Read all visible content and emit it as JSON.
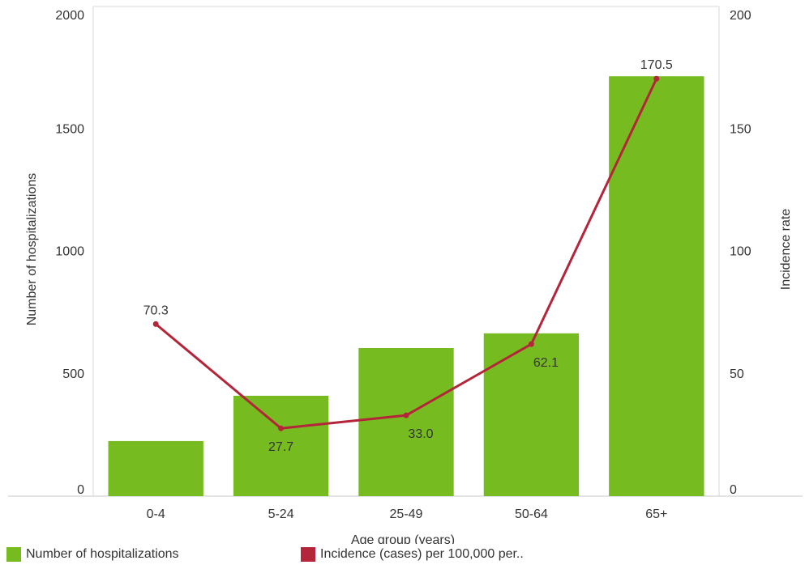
{
  "chart_data": {
    "type": "bar",
    "categories": [
      "0-4",
      "5-24",
      "25-49",
      "50-64",
      "65+"
    ],
    "series": [
      {
        "name": "Number of hospitalizations",
        "type": "bar",
        "axis": "left",
        "color": "#76bc21",
        "values": [
          225,
          410,
          605,
          665,
          1715
        ]
      },
      {
        "name": "Incidence (cases) per 100,000 per..",
        "type": "line",
        "axis": "right",
        "color": "#b5253a",
        "values": [
          70.3,
          27.7,
          33.0,
          62.1,
          170.5
        ],
        "data_labels": [
          "70.3",
          "27.7",
          "33.0",
          "62.1",
          "170.5"
        ]
      }
    ],
    "xlabel": "Age group (years)",
    "ylabel_left": "Number of hospitalizations",
    "ylabel_right": "Incidence rate",
    "ylim_left": [
      0,
      2000
    ],
    "ylim_right": [
      0,
      200
    ],
    "yticks_left": [
      "0",
      "500",
      "1000",
      "1500",
      "2000"
    ],
    "yticks_right": [
      "0",
      "50",
      "100",
      "150",
      "200"
    ],
    "grid": false,
    "legend_position": "bottom"
  }
}
